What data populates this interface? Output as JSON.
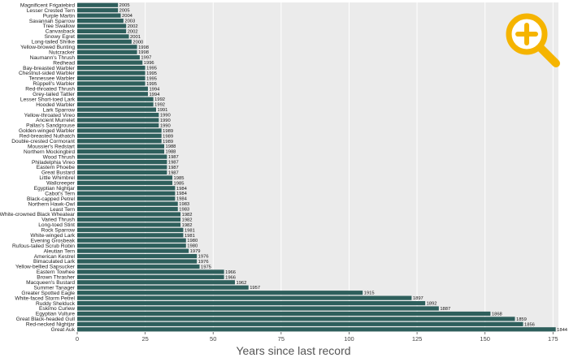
{
  "chart_data": {
    "type": "bar",
    "orientation": "horizontal",
    "xlabel": "Years since last record",
    "xlim": [
      0,
      177
    ],
    "xticks": [
      0,
      25,
      50,
      75,
      100,
      125,
      150,
      175
    ],
    "bar_color": "#2e5f5c",
    "background": "#ebebeb",
    "grid": true,
    "categories": [
      "Magnificent Frigatebird",
      "Lesser Crested Tern",
      "Purple Martin",
      "Savannah Sparrow",
      "Tree Swallow",
      "Canvasback",
      "Snowy Egret",
      "Long-tailed Shrike",
      "Yellow-browed Bunting",
      "Nutcracker",
      "Naumann's Thrush",
      "Redhead",
      "Bay-breasted Warbler",
      "Chestnut-sided Warbler",
      "Tennessee Warbler",
      "Rüppell's Warbler",
      "Red-throated Thrush",
      "Grey-tailed Tattler",
      "Lesser Short-toed Lark",
      "Hooded Warbler",
      "Lark Sparrow",
      "Yellow-throated Vireo",
      "Ancient Murrelet",
      "Pallas's Sandgrouse",
      "Golden-winged Warbler",
      "Red-breasted Nuthatch",
      "Double-crested Cormorant",
      "Moussier's Redstart",
      "Northern Mockingbird",
      "Wood Thrush",
      "Philadelphia Vireo",
      "Eastern Phoebe",
      "Great Bustard",
      "Little Whimbrel",
      "Wallcreeper",
      "Egyptian Nightjar",
      "Cabot's Tern",
      "Black-capped Petrel",
      "Northern Hawk-Owl",
      "Least Tern",
      "White-crowned Black Wheatear",
      "Varied Thrush",
      "Long-toed Stint",
      "Rock Sparrow",
      "White-winged Lark",
      "Evening Grosbeak",
      "Rufous-tailed Scrub Robin",
      "Aleutian Tern",
      "American Kestrel",
      "Bimaculated Lark",
      "Yellow-bellied Sapsucker",
      "Eastern Towhee",
      "Brown Thrasher",
      "Macqueen's Bustard",
      "Summer Tanager",
      "Greater Spotted Eagle",
      "White-faced Storm Petrel",
      "Ruddy Shelduck",
      "Eskimo Curlew",
      "Egyptian Vulture",
      "Great Black-headed Gull",
      "Red-necked Nightjar",
      "Great Auk"
    ],
    "years": [
      2005,
      2005,
      2004,
      2003,
      2002,
      2002,
      2001,
      2000,
      1998,
      1998,
      1997,
      1996,
      1995,
      1995,
      1995,
      1995,
      1994,
      1994,
      1992,
      1992,
      1991,
      1990,
      1990,
      1990,
      1989,
      1989,
      1989,
      1988,
      1988,
      1987,
      1987,
      1987,
      1987,
      1985,
      1985,
      1984,
      1984,
      1984,
      1983,
      1983,
      1982,
      1982,
      1982,
      1981,
      1981,
      1980,
      1980,
      1979,
      1976,
      1976,
      1975,
      1966,
      1966,
      1962,
      1957,
      1915,
      1897,
      1892,
      1887,
      1868,
      1859,
      1856,
      1844
    ],
    "values": [
      15,
      15,
      16,
      17,
      18,
      18,
      19,
      20,
      22,
      22,
      23,
      24,
      25,
      25,
      25,
      25,
      26,
      26,
      28,
      28,
      29,
      30,
      30,
      30,
      31,
      31,
      31,
      32,
      32,
      33,
      33,
      33,
      33,
      35,
      35,
      36,
      36,
      36,
      37,
      37,
      38,
      38,
      38,
      39,
      39,
      40,
      40,
      41,
      44,
      44,
      45,
      54,
      54,
      58,
      63,
      105,
      123,
      128,
      133,
      152,
      161,
      164,
      176
    ]
  },
  "toolbar": {
    "zoom_icon": "magnifier-plus-icon",
    "zoom_color": "#f5b400"
  }
}
